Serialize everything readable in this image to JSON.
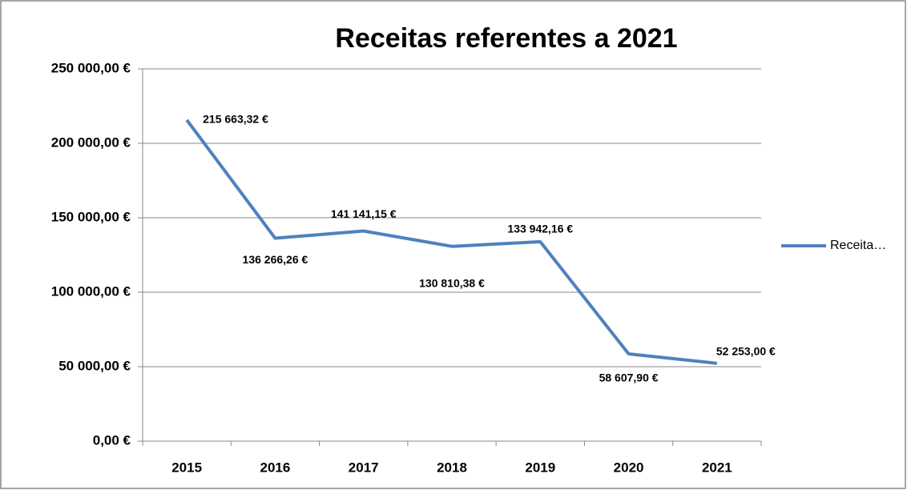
{
  "chart_data": {
    "type": "line",
    "title": "Receitas referentes a 2021",
    "categories": [
      "2015",
      "2016",
      "2017",
      "2018",
      "2019",
      "2020",
      "2021"
    ],
    "series": [
      {
        "name": "Receita…",
        "color": "#4f81bd",
        "values": [
          215663.32,
          136266.26,
          141141.15,
          130810.38,
          133942.16,
          58607.9,
          52253.0
        ],
        "value_labels": [
          "215 663,32 €",
          "136 266,26 €",
          "141 141,15 €",
          "130 810,38 €",
          "133 942,16 €",
          "58 607,90 €",
          "52 253,00 €"
        ]
      }
    ],
    "ylim": [
      0,
      250000
    ],
    "yticks": [
      {
        "value": 0,
        "label": "0,00 €"
      },
      {
        "value": 50000,
        "label": "50 000,00 €"
      },
      {
        "value": 100000,
        "label": "100 000,00 €"
      },
      {
        "value": 150000,
        "label": "150 000,00 €"
      },
      {
        "value": 200000,
        "label": "200 000,00 €"
      },
      {
        "value": 250000,
        "label": "250 000,00 €"
      }
    ],
    "grid": true,
    "legend": "right"
  }
}
